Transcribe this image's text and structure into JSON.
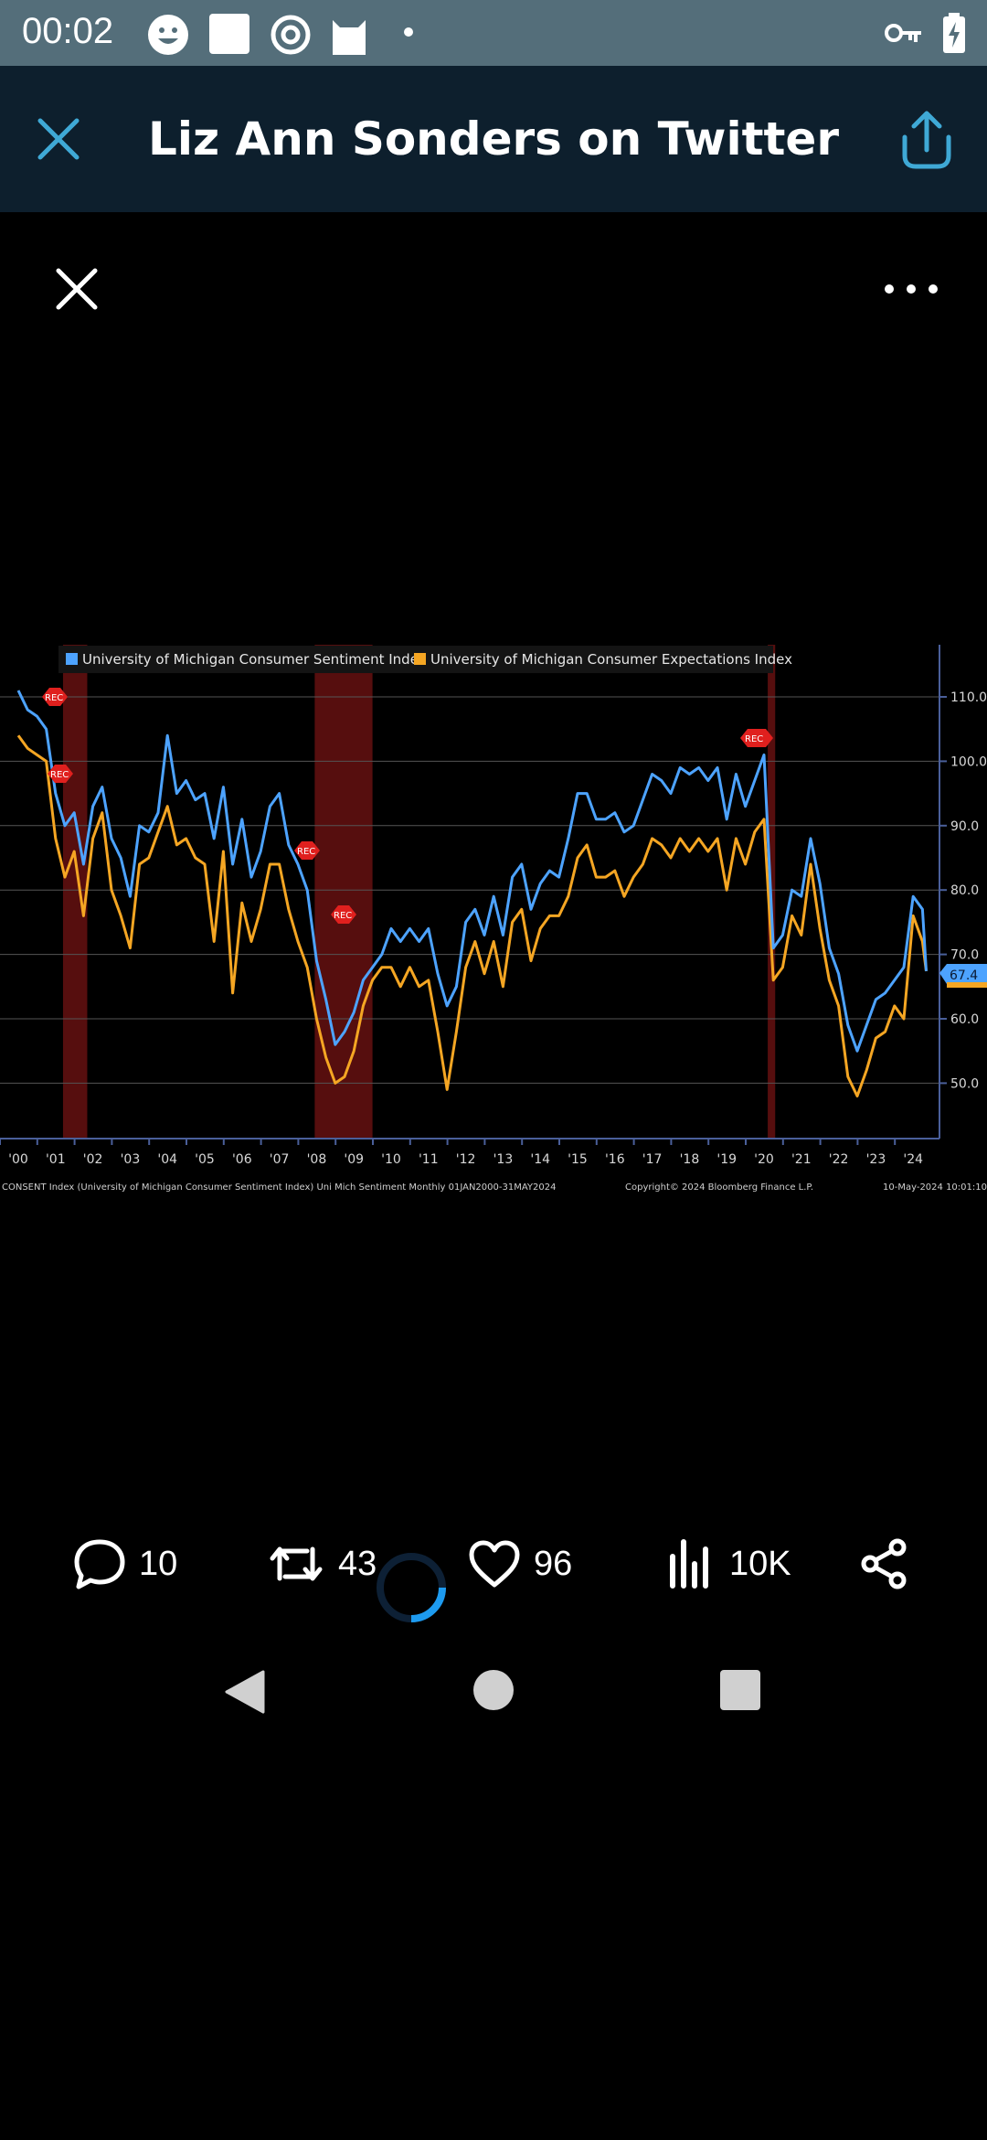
{
  "status_bar": {
    "time": "00:02"
  },
  "header": {
    "title": "Liz Ann Sonders on Twitter"
  },
  "actions": {
    "replies": "10",
    "retweets": "43",
    "likes": "96",
    "views": "10K"
  },
  "colors": {
    "header_bg": "#0d1f2d",
    "status_bg": "#546e7a",
    "accent": "#3fa9d6",
    "series_sentiment": "#4da3ff",
    "series_expectations": "#f5a623",
    "recession_shade": "#7a1414"
  },
  "chart_data": {
    "type": "line",
    "legend": [
      "University of Michigan Consumer Sentiment Index",
      "University of Michigan Consumer Expectations Index"
    ],
    "y_ticks": [
      "110.0",
      "100.0",
      "90.0",
      "80.0",
      "70.0",
      "60.0",
      "50.0"
    ],
    "ylim": [
      40,
      117
    ],
    "x_ticks": [
      "'00",
      "'01",
      "'02",
      "'03",
      "'04",
      "'05",
      "'06",
      "'07",
      "'08",
      "'09",
      "'10",
      "'11",
      "'12",
      "'13",
      "'14",
      "'15",
      "'16",
      "'17",
      "'18",
      "'19",
      "'20",
      "'21",
      "'22",
      "'23",
      "'24"
    ],
    "last_value_label": "67.4",
    "recession_label": "REC",
    "recessions": [
      [
        2001.2,
        2001.85
      ],
      [
        2007.95,
        2009.5
      ],
      [
        2020.1,
        2020.3
      ]
    ],
    "series": [
      {
        "name": "University of Michigan Consumer Sentiment Index",
        "x": [
          2000.0,
          2000.25,
          2000.5,
          2000.75,
          2001.0,
          2001.25,
          2001.5,
          2001.75,
          2002.0,
          2002.25,
          2002.5,
          2002.75,
          2003.0,
          2003.25,
          2003.5,
          2003.75,
          2004.0,
          2004.25,
          2004.5,
          2004.75,
          2005.0,
          2005.25,
          2005.5,
          2005.75,
          2006.0,
          2006.25,
          2006.5,
          2006.75,
          2007.0,
          2007.25,
          2007.5,
          2007.75,
          2008.0,
          2008.25,
          2008.5,
          2008.75,
          2009.0,
          2009.25,
          2009.5,
          2009.75,
          2010.0,
          2010.25,
          2010.5,
          2010.75,
          2011.0,
          2011.25,
          2011.5,
          2011.75,
          2012.0,
          2012.25,
          2012.5,
          2012.75,
          2013.0,
          2013.25,
          2013.5,
          2013.75,
          2014.0,
          2014.25,
          2014.5,
          2014.75,
          2015.0,
          2015.25,
          2015.5,
          2015.75,
          2016.0,
          2016.25,
          2016.5,
          2016.75,
          2017.0,
          2017.25,
          2017.5,
          2017.75,
          2018.0,
          2018.25,
          2018.5,
          2018.75,
          2019.0,
          2019.25,
          2019.5,
          2019.75,
          2020.0,
          2020.25,
          2020.5,
          2020.75,
          2021.0,
          2021.25,
          2021.5,
          2021.75,
          2022.0,
          2022.25,
          2022.5,
          2022.75,
          2023.0,
          2023.25,
          2023.5,
          2023.75,
          2024.0,
          2024.25,
          2024.35
        ],
        "values": [
          111,
          108,
          107,
          105,
          95,
          90,
          92,
          84,
          93,
          96,
          88,
          85,
          79,
          90,
          89,
          92,
          104,
          95,
          97,
          94,
          95,
          88,
          96,
          84,
          91,
          82,
          86,
          93,
          95,
          87,
          84,
          80,
          69,
          63,
          56,
          58,
          61,
          66,
          68,
          70,
          74,
          72,
          74,
          72,
          74,
          67,
          62,
          65,
          75,
          77,
          73,
          79,
          73,
          82,
          84,
          77,
          81,
          83,
          82,
          88,
          95,
          95,
          91,
          91,
          92,
          89,
          90,
          94,
          98,
          97,
          95,
          99,
          98,
          99,
          97,
          99,
          91,
          98,
          93,
          97,
          101,
          71,
          73,
          80,
          79,
          88,
          81,
          71,
          67,
          59,
          55,
          59,
          63,
          64,
          66,
          68,
          79,
          77,
          67.4
        ]
      },
      {
        "name": "University of Michigan Consumer Expectations Index",
        "x": [
          2000.0,
          2000.25,
          2000.5,
          2000.75,
          2001.0,
          2001.25,
          2001.5,
          2001.75,
          2002.0,
          2002.25,
          2002.5,
          2002.75,
          2003.0,
          2003.25,
          2003.5,
          2003.75,
          2004.0,
          2004.25,
          2004.5,
          2004.75,
          2005.0,
          2005.25,
          2005.5,
          2005.75,
          2006.0,
          2006.25,
          2006.5,
          2006.75,
          2007.0,
          2007.25,
          2007.5,
          2007.75,
          2008.0,
          2008.25,
          2008.5,
          2008.75,
          2009.0,
          2009.25,
          2009.5,
          2009.75,
          2010.0,
          2010.25,
          2010.5,
          2010.75,
          2011.0,
          2011.25,
          2011.5,
          2011.75,
          2012.0,
          2012.25,
          2012.5,
          2012.75,
          2013.0,
          2013.25,
          2013.5,
          2013.75,
          2014.0,
          2014.25,
          2014.5,
          2014.75,
          2015.0,
          2015.25,
          2015.5,
          2015.75,
          2016.0,
          2016.25,
          2016.5,
          2016.75,
          2017.0,
          2017.25,
          2017.5,
          2017.75,
          2018.0,
          2018.25,
          2018.5,
          2018.75,
          2019.0,
          2019.25,
          2019.5,
          2019.75,
          2020.0,
          2020.25,
          2020.5,
          2020.75,
          2021.0,
          2021.25,
          2021.5,
          2021.75,
          2022.0,
          2022.25,
          2022.5,
          2022.75,
          2023.0,
          2023.25,
          2023.5,
          2023.75,
          2024.0,
          2024.25,
          2024.35
        ],
        "values": [
          104,
          102,
          101,
          100,
          88,
          82,
          86,
          76,
          88,
          92,
          80,
          76,
          71,
          84,
          85,
          89,
          93,
          87,
          88,
          85,
          84,
          72,
          86,
          64,
          78,
          72,
          77,
          84,
          84,
          77,
          72,
          68,
          60,
          54,
          50,
          51,
          55,
          62,
          66,
          68,
          68,
          65,
          68,
          65,
          66,
          58,
          49,
          58,
          68,
          72,
          67,
          72,
          65,
          75,
          77,
          69,
          74,
          76,
          76,
          79,
          85,
          87,
          82,
          82,
          83,
          79,
          82,
          84,
          88,
          87,
          85,
          88,
          86,
          88,
          86,
          88,
          80,
          88,
          84,
          89,
          91,
          66,
          68,
          76,
          73,
          84,
          74,
          66,
          62,
          51,
          48,
          52,
          57,
          58,
          62,
          60,
          76,
          72,
          67.4
        ]
      }
    ],
    "footer_left": "CONSENT Index (University of Michigan Consumer Sentiment Index) Uni Mich Sentiment  Monthly 01JAN2000-31MAY2024",
    "footer_mid": "Copyright© 2024 Bloomberg Finance L.P.",
    "footer_right": "10-May-2024 10:01:10"
  }
}
